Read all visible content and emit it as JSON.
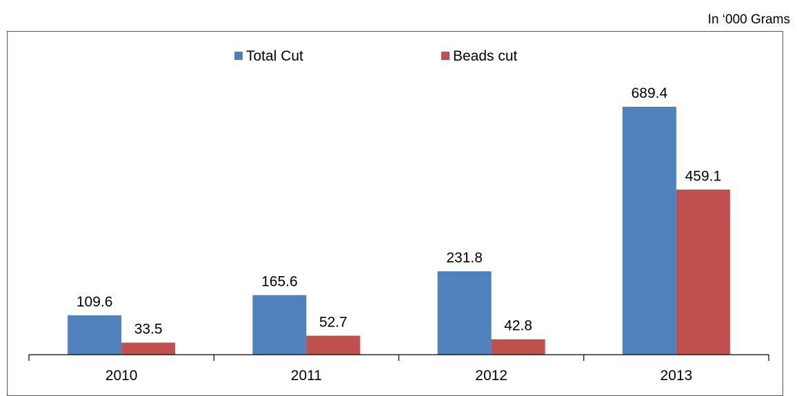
{
  "header": {
    "unit_note": "In ‘000 Grams"
  },
  "chart_data": {
    "type": "bar",
    "categories": [
      "2010",
      "2011",
      "2012",
      "2013"
    ],
    "series": [
      {
        "name": "Total Cut",
        "values": [
          109.6,
          165.6,
          231.8,
          689.4
        ],
        "color": "#4F81BD",
        "labels": [
          "109.6",
          "165.6",
          "231.8",
          "689.4"
        ]
      },
      {
        "name": "Beads cut",
        "values": [
          33.5,
          52.7,
          42.8,
          459.1
        ],
        "color": "#C0504D",
        "labels": [
          "33.5",
          "52.7",
          "42.8",
          "459.1"
        ]
      }
    ],
    "title": "",
    "xlabel": "",
    "ylabel": "",
    "ylim": [
      0,
      766
    ],
    "grid": false,
    "legend": "top-center"
  }
}
